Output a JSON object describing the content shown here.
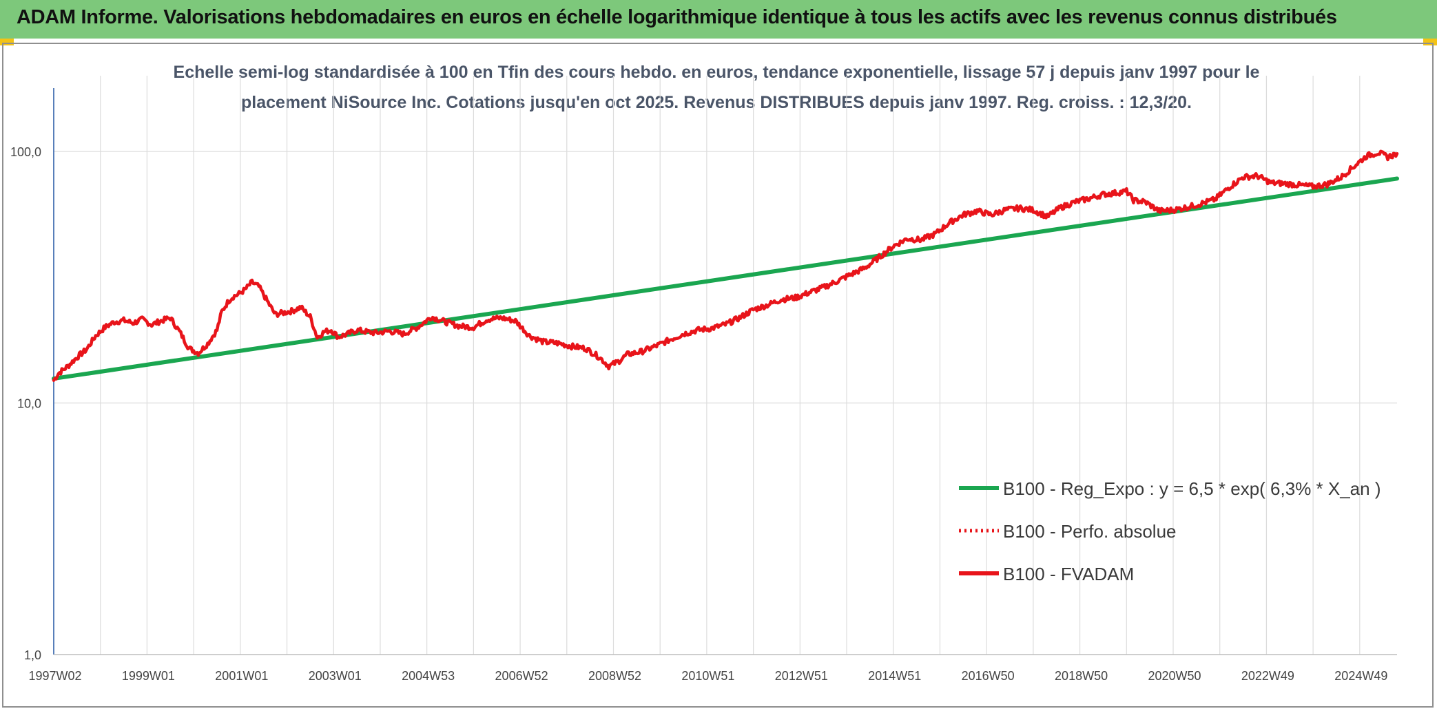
{
  "header": {
    "title": "ADAM Informe. Valorisations hebdomadaires en euros en échelle logarithmique identique à tous les actifs avec les revenus connus distribués"
  },
  "colors": {
    "banner": "#7dc87b",
    "regression": "#1aa650",
    "perf": "#e8141a",
    "fvadam": "#e8141a",
    "grid": "#dcdcdc"
  },
  "chart_data": {
    "type": "line",
    "title_lines": [
      "Echelle semi-log standardisée à 100 en Tfin des cours hebdo. en euros, tendance exponentielle, lissage 57 j depuis janv 1997 pour le",
      "placement NiSource Inc. Cotations jusqu'en oct 2025. Revenus DISTRIBUES depuis janv 1997. Reg. croiss. : 12,3/20."
    ],
    "y_scale": "log",
    "ylim": [
      1,
      200
    ],
    "y_ticks": [
      {
        "value": 1,
        "label": "1,0"
      },
      {
        "value": 10,
        "label": "10,0"
      },
      {
        "value": 100,
        "label": "100,0"
      }
    ],
    "xlim": [
      1997.0,
      2025.8
    ],
    "x_ticks": [
      {
        "value": 1997.0,
        "label": "1997W02"
      },
      {
        "value": 1999.0,
        "label": "1999W01"
      },
      {
        "value": 2001.0,
        "label": "2001W01"
      },
      {
        "value": 2003.0,
        "label": "2003W01"
      },
      {
        "value": 2005.0,
        "label": "2004W53"
      },
      {
        "value": 2007.0,
        "label": "2006W52"
      },
      {
        "value": 2009.0,
        "label": "2008W52"
      },
      {
        "value": 2011.0,
        "label": "2010W51"
      },
      {
        "value": 2013.0,
        "label": "2012W51"
      },
      {
        "value": 2015.0,
        "label": "2014W51"
      },
      {
        "value": 2017.0,
        "label": "2016W50"
      },
      {
        "value": 2019.0,
        "label": "2018W50"
      },
      {
        "value": 2021.0,
        "label": "2020W50"
      },
      {
        "value": 2023.0,
        "label": "2022W49"
      },
      {
        "value": 2025.0,
        "label": "2024W49"
      }
    ],
    "legend_position": "bottom-right",
    "series": [
      {
        "name": "B100 - Reg_Expo : y = 6,5 * exp( 6,3% *  X_an )",
        "style": "solid",
        "x": [
          1997.0,
          2025.8
        ],
        "values": [
          12.5,
          78.0
        ]
      },
      {
        "name": "B100 - Perfo. absolue",
        "style": "dotted",
        "x": [],
        "values": []
      },
      {
        "name": "B100 - FVADAM",
        "style": "solid",
        "x": [
          1997.0,
          1997.1,
          1997.3,
          1997.5,
          1997.7,
          1997.9,
          1998.1,
          1998.3,
          1998.5,
          1998.7,
          1998.9,
          1999.1,
          1999.3,
          1999.5,
          1999.7,
          1999.9,
          2000.1,
          2000.3,
          2000.5,
          2000.6,
          2000.75,
          2000.85,
          2000.95,
          2001.1,
          2001.25,
          2001.4,
          2001.6,
          2001.75,
          2001.9,
          2002.1,
          2002.3,
          2002.5,
          2002.65,
          2002.8,
          2002.95,
          2003.1,
          2003.3,
          2003.5,
          2003.7,
          2003.9,
          2004.2,
          2004.5,
          2004.8,
          2005.1,
          2005.4,
          2005.7,
          2006.0,
          2006.3,
          2006.6,
          2006.9,
          2007.2,
          2007.5,
          2007.8,
          2008.1,
          2008.4,
          2008.7,
          2008.9,
          2009.1,
          2009.3,
          2009.6,
          2009.9,
          2010.2,
          2010.5,
          2010.8,
          2011.1,
          2011.4,
          2011.7,
          2012.0,
          2012.3,
          2012.6,
          2012.9,
          2013.2,
          2013.5,
          2013.8,
          2014.1,
          2014.4,
          2014.7,
          2015.0,
          2015.3,
          2015.6,
          2015.9,
          2016.2,
          2016.5,
          2016.8,
          2017.1,
          2017.4,
          2017.7,
          2018.0,
          2018.3,
          2018.6,
          2018.9,
          2019.2,
          2019.5,
          2019.8,
          2020.0,
          2020.15,
          2020.4,
          2020.7,
          2021.0,
          2021.3,
          2021.6,
          2021.9,
          2022.2,
          2022.5,
          2022.8,
          2023.1,
          2023.4,
          2023.7,
          2024.0,
          2024.3,
          2024.6,
          2024.9,
          2025.15,
          2025.4,
          2025.6,
          2025.8
        ],
        "values": [
          12.3,
          13.1,
          14.0,
          15.2,
          16.3,
          18.5,
          20.0,
          21.0,
          21.3,
          20.8,
          21.5,
          20.5,
          21.2,
          21.8,
          19.2,
          16.5,
          15.8,
          17.2,
          19.5,
          23.0,
          25.5,
          26.5,
          27.0,
          28.2,
          30.2,
          29.0,
          25.0,
          22.5,
          22.8,
          23.2,
          24.0,
          22.0,
          18.2,
          19.2,
          19.5,
          18.3,
          18.8,
          19.5,
          19.2,
          19.0,
          19.3,
          18.8,
          20.0,
          22.0,
          21.0,
          20.2,
          20.0,
          21.5,
          21.8,
          21.2,
          18.5,
          17.5,
          17.3,
          16.8,
          16.5,
          15.2,
          14.0,
          14.6,
          15.6,
          16.0,
          16.8,
          17.8,
          18.8,
          19.5,
          19.8,
          20.5,
          21.8,
          23.5,
          24.5,
          25.8,
          26.2,
          27.5,
          28.8,
          30.5,
          32.5,
          34.5,
          38.0,
          42.0,
          45.0,
          44.5,
          47.0,
          52.0,
          56.0,
          58.0,
          56.0,
          58.5,
          59.5,
          58.5,
          55.0,
          60.0,
          63.0,
          65.0,
          67.5,
          68.5,
          69.5,
          64.0,
          63.0,
          58.0,
          58.5,
          60.0,
          62.0,
          64.5,
          72.0,
          79.0,
          80.0,
          75.0,
          74.5,
          73.5,
          72.5,
          74.0,
          79.0,
          88.0,
          96.0,
          99.0,
          95.0,
          98.0
        ]
      }
    ]
  }
}
